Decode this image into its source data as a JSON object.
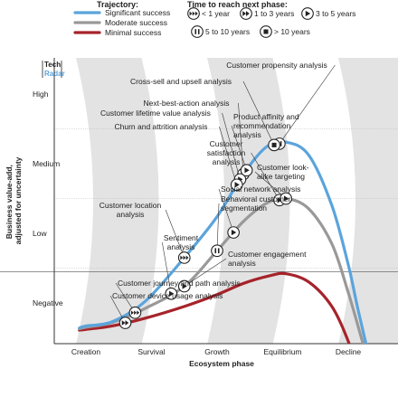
{
  "chart_data": {
    "type": "line",
    "xlabel": "Ecosystem phase",
    "ylabel": "Business value-add, adjusted for uncertainty",
    "x_categories": [
      "Creation",
      "Survival",
      "Growth",
      "Equilibrium",
      "Decline"
    ],
    "y_levels": [
      "Negative",
      "Low",
      "Medium",
      "High"
    ],
    "logo": {
      "line1": "Tech",
      "line2": "Radar"
    },
    "legend": {
      "trajectory_title": "Trajectory:",
      "time_title": "Time to reach next phase:",
      "trajectories": [
        {
          "label": "Significant success",
          "color": "#5ba4dc"
        },
        {
          "label": "Moderate success",
          "color": "#999999"
        },
        {
          "label": "Minimal success",
          "color": "#a6232a"
        }
      ],
      "times": [
        {
          "label": "< 1 year",
          "icon": "fast-forward-triple-icon"
        },
        {
          "label": "1 to 3 years",
          "icon": "fast-forward-icon"
        },
        {
          "label": "3 to 5 years",
          "icon": "play-icon"
        },
        {
          "label": "5 to 10 years",
          "icon": "pause-icon"
        },
        {
          "label": "> 10 years",
          "icon": "stop-icon"
        }
      ]
    },
    "series": [
      {
        "name": "Significant success",
        "color": "#5ba4dc",
        "points": [
          [
            -0.1,
            -0.36
          ],
          [
            0,
            -0.33
          ],
          [
            0.4,
            -0.27
          ],
          [
            0.9,
            0.02
          ],
          [
            1.5,
            0.65
          ],
          [
            2.0,
            1.24
          ],
          [
            2.4,
            1.85
          ],
          [
            2.75,
            2.24
          ],
          [
            3.05,
            2.31
          ],
          [
            3.4,
            2.12
          ],
          [
            3.75,
            1.4
          ],
          [
            4.0,
            0.55
          ],
          [
            4.15,
            -0.1
          ],
          [
            4.35,
            -0.9
          ]
        ]
      },
      {
        "name": "Moderate success",
        "color": "#999999",
        "points": [
          [
            -0.1,
            -0.37
          ],
          [
            0,
            -0.35
          ],
          [
            0.4,
            -0.28
          ],
          [
            0.9,
            -0.08
          ],
          [
            1.5,
            0.24
          ],
          [
            2.0,
            0.75
          ],
          [
            2.4,
            1.17
          ],
          [
            2.75,
            1.43
          ],
          [
            3.05,
            1.5
          ],
          [
            3.4,
            1.35
          ],
          [
            3.75,
            0.85
          ],
          [
            4.0,
            0.15
          ],
          [
            4.2,
            -0.5
          ],
          [
            4.4,
            -1.15
          ]
        ]
      },
      {
        "name": "Minimal success",
        "color": "#a6232a",
        "points": [
          [
            -0.1,
            -0.39
          ],
          [
            0,
            -0.38
          ],
          [
            0.4,
            -0.33
          ],
          [
            0.9,
            -0.22
          ],
          [
            1.5,
            -0.05
          ],
          [
            2.0,
            0.12
          ],
          [
            2.4,
            0.28
          ],
          [
            2.8,
            0.39
          ],
          [
            3.05,
            0.42
          ],
          [
            3.4,
            0.3
          ],
          [
            3.75,
            -0.05
          ],
          [
            4.0,
            -0.55
          ],
          [
            4.1,
            -0.9
          ]
        ]
      }
    ],
    "annotations": [
      {
        "text": [
          "Customer propensity analysis"
        ],
        "series": 0,
        "x": 2.95,
        "time": "pause"
      },
      {
        "text": [
          "Cross-sell and upsell analysis"
        ],
        "series": 0,
        "x": 2.87,
        "time": "stop"
      },
      {
        "text": [
          "Next-best-action analysis"
        ],
        "series": 0,
        "x": 2.4,
        "time": "play"
      },
      {
        "text": [
          "Customer lifetime value analysis"
        ],
        "series": 0,
        "x": 2.35,
        "time": "play"
      },
      {
        "text": [
          "Churn and attrition analysis"
        ],
        "series": 0,
        "x": 2.3,
        "time": "play"
      },
      {
        "text": [
          "Product affinity and",
          "recommendation",
          "analysis"
        ],
        "series": 0,
        "x": 2.45,
        "time": "play"
      },
      {
        "text": [
          "Customer location",
          "analysis"
        ],
        "series": 0,
        "x": 1.5,
        "time": "fast-forward-triple"
      },
      {
        "text": [
          "Customer",
          "satisfaction",
          "analysis"
        ],
        "series": 1,
        "x": 2.95,
        "time": "play"
      },
      {
        "text": [
          "Customer look-",
          "alike targeting"
        ],
        "series": 1,
        "x": 3.05,
        "time": "play"
      },
      {
        "text": [
          "Social network analysis"
        ],
        "series": 1,
        "x": 2.25,
        "time": "play"
      },
      {
        "text": [
          "Behavioral customer",
          "segmentation"
        ],
        "series": 1,
        "x": 2.0,
        "time": "pause"
      },
      {
        "text": [
          "Sentiment",
          "analysis"
        ],
        "series": 1,
        "x": 1.3,
        "time": "play"
      },
      {
        "text": [
          "Customer engagement",
          "analysis"
        ],
        "series": 1,
        "x": 1.5,
        "time": "play"
      },
      {
        "text": [
          "Customer journey and path analysis"
        ],
        "series": 1,
        "x": 0.75,
        "time": "fast-forward-triple"
      },
      {
        "text": [
          "Customer device usage analysis"
        ],
        "series": 2,
        "x": 0.6,
        "time": "fast-forward"
      }
    ]
  }
}
